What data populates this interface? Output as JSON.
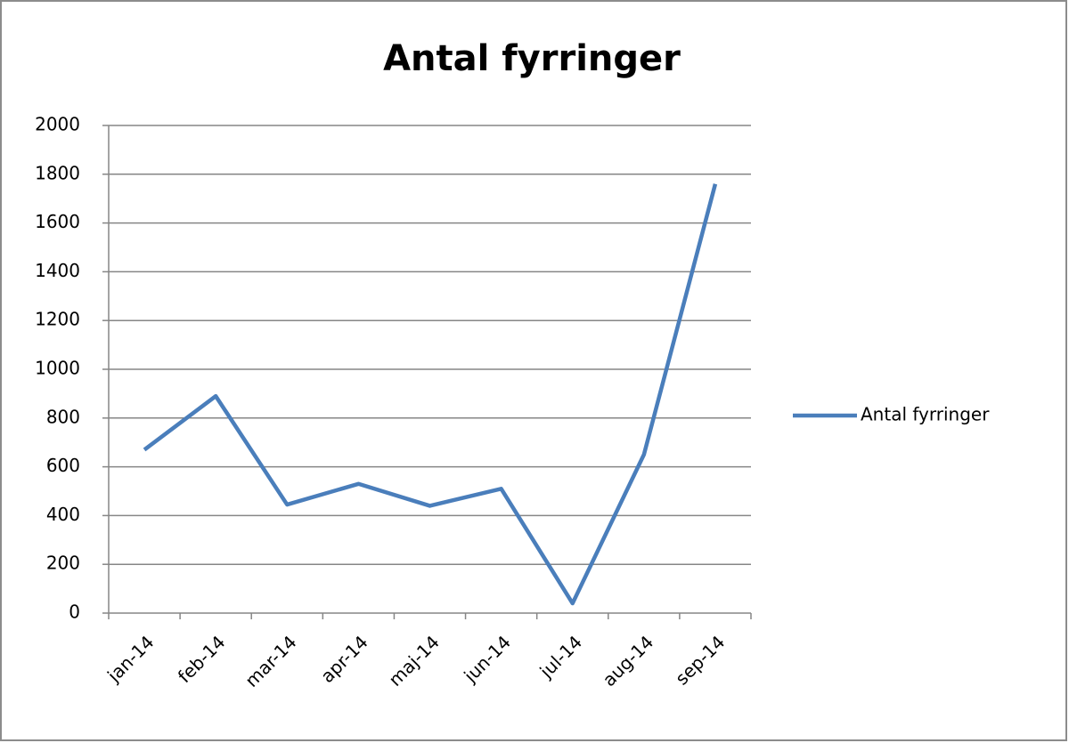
{
  "chart_data": {
    "type": "line",
    "title": "Antal fyrringer",
    "categories": [
      "jan-14",
      "feb-14",
      "mar-14",
      "apr-14",
      "maj-14",
      "jun-14",
      "jul-14",
      "aug-14",
      "sep-14"
    ],
    "series": [
      {
        "name": "Antal fyrringer",
        "color": "#4a7ebb",
        "values": [
          670,
          890,
          445,
          530,
          440,
          510,
          40,
          650,
          1760
        ]
      }
    ],
    "ylim": [
      0,
      2000
    ],
    "yticks": [
      0,
      200,
      400,
      600,
      800,
      1000,
      1200,
      1400,
      1600,
      1800,
      2000
    ],
    "grid": true,
    "legend": "right"
  }
}
